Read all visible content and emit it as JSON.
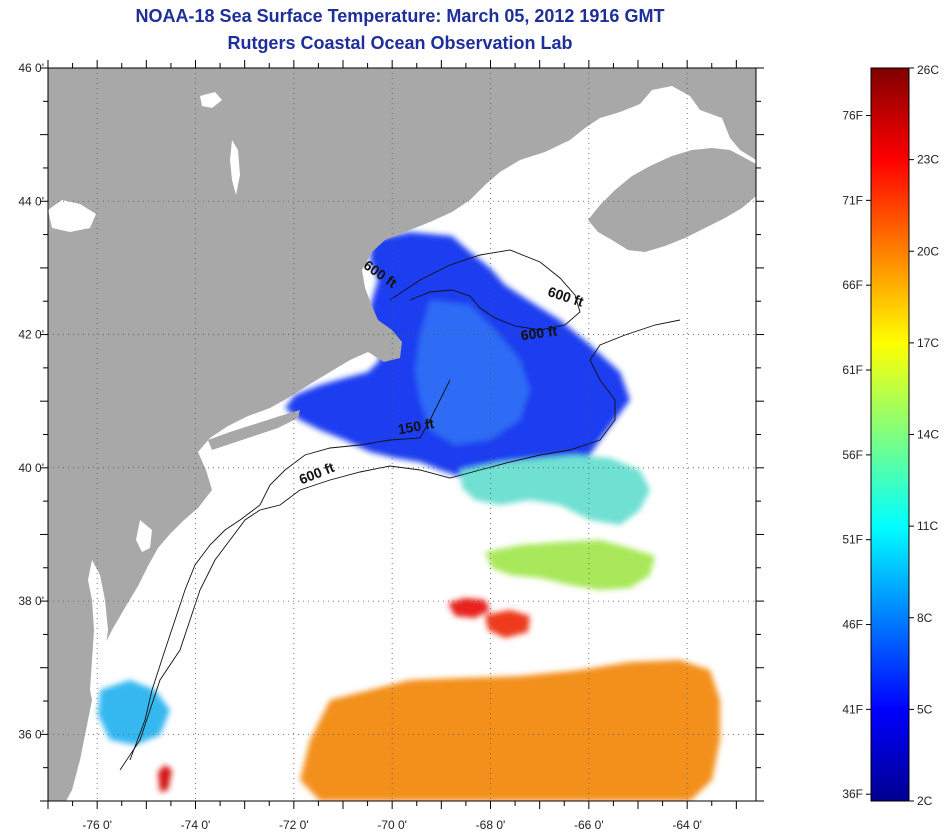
{
  "title": {
    "line1": "NOAA-18 Sea Surface Temperature:  March 05, 2012 1916 GMT",
    "line2": "Rutgers Coastal Ocean Observation Lab"
  },
  "map": {
    "lat_range": [
      35.0,
      46.0
    ],
    "lon_range": [
      -77.0,
      -62.6
    ],
    "lat_ticks": [
      {
        "value": 46,
        "label": "46 0'"
      },
      {
        "value": 44,
        "label": "44 0'"
      },
      {
        "value": 42,
        "label": "42 0'"
      },
      {
        "value": 40,
        "label": "40 0'"
      },
      {
        "value": 38,
        "label": "38 0'"
      },
      {
        "value": 36,
        "label": "36 0'"
      }
    ],
    "lon_ticks": [
      {
        "value": -76,
        "label": "-76 0'"
      },
      {
        "value": -74,
        "label": "-74 0'"
      },
      {
        "value": -72,
        "label": "-72 0'"
      },
      {
        "value": -70,
        "label": "-70 0'"
      },
      {
        "value": -68,
        "label": "-68 0'"
      },
      {
        "value": -66,
        "label": "-66 0'"
      },
      {
        "value": -64,
        "label": "-64 0'"
      }
    ],
    "contour_labels": [
      {
        "text": "600 ft",
        "lon": -71.5,
        "lat": 39.85,
        "rotate": -22
      },
      {
        "text": "150 ft",
        "lon": -69.5,
        "lat": 40.55,
        "rotate": -10
      },
      {
        "text": "600 ft",
        "lon": -67.0,
        "lat": 41.95,
        "rotate": -8
      },
      {
        "text": "600 ft",
        "lon": -66.5,
        "lat": 42.5,
        "rotate": 18
      },
      {
        "text": "600 ft",
        "lon": -70.3,
        "lat": 42.85,
        "rotate": 35
      }
    ],
    "colors": {
      "land": "#a8a8a8",
      "ocean": "#ffffff",
      "grid": "#555555"
    }
  },
  "colorbar": {
    "min_c": 2,
    "max_c": 26,
    "celsius_labels": [
      {
        "value": 26,
        "label": "26C"
      },
      {
        "value": 23,
        "label": "23C"
      },
      {
        "value": 20,
        "label": "20C"
      },
      {
        "value": 17,
        "label": "17C"
      },
      {
        "value": 14,
        "label": "14C"
      },
      {
        "value": 11,
        "label": "11C"
      },
      {
        "value": 8,
        "label": "8C"
      },
      {
        "value": 5,
        "label": "5C"
      },
      {
        "value": 2,
        "label": "2C"
      }
    ],
    "fahrenheit_labels": [
      {
        "value": 76,
        "label": "76F"
      },
      {
        "value": 71,
        "label": "71F"
      },
      {
        "value": 66,
        "label": "66F"
      },
      {
        "value": 61,
        "label": "61F"
      },
      {
        "value": 56,
        "label": "56F"
      },
      {
        "value": 51,
        "label": "51F"
      },
      {
        "value": 46,
        "label": "46F"
      },
      {
        "value": 41,
        "label": "41F"
      },
      {
        "value": 36,
        "label": "36F"
      }
    ]
  }
}
